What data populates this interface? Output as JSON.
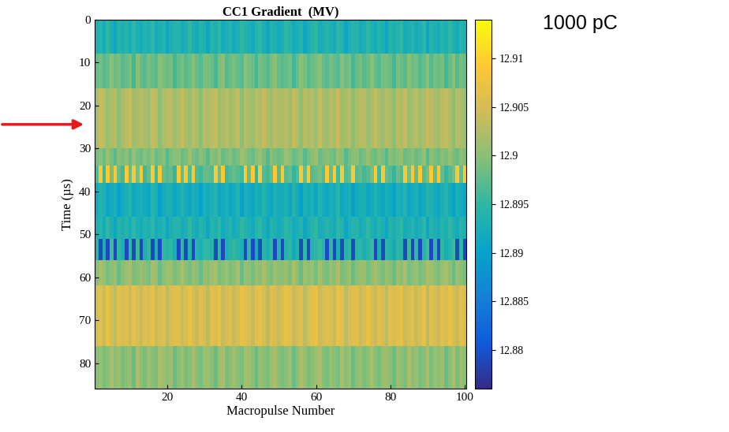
{
  "chart_data": {
    "type": "heatmap",
    "title": "CC1 Gradient  (MV)",
    "x_label": "Macropulse Number",
    "y_label": "Time (µs)",
    "annotations": [
      "1000 pC"
    ],
    "xlim": [
      0.5,
      100.5
    ],
    "xticks": [
      20,
      40,
      60,
      80,
      100
    ],
    "ylim": [
      86,
      0
    ],
    "yticks": [
      0,
      10,
      20,
      30,
      40,
      50,
      60,
      70,
      80
    ],
    "colorbar_range": [
      12.876,
      12.914
    ],
    "colorbar_ticks": [
      12.88,
      12.885,
      12.89,
      12.895,
      12.9,
      12.905,
      12.91
    ],
    "x_bins": [
      0.5,
      1.5,
      2.5,
      3.5,
      4.5,
      5.5,
      6.5,
      7.5,
      8.5,
      9.5,
      10.5,
      11.5,
      12.5,
      13.5,
      14.5,
      15.5,
      16.5,
      17.5,
      18.5,
      19.5,
      20.5,
      21.5,
      22.5,
      23.5,
      24.5,
      25.5,
      26.5,
      27.5,
      28.5,
      29.5,
      30.5,
      31.5,
      32.5,
      33.5,
      34.5,
      35.5,
      36.5,
      37.5,
      38.5,
      39.5,
      40.5,
      41.5,
      42.5,
      43.5,
      44.5,
      45.5,
      46.5,
      47.5,
      48.5,
      49.5,
      50.5,
      51.5,
      52.5,
      53.5,
      54.5,
      55.5,
      56.5,
      57.5,
      58.5,
      59.5,
      60.5,
      61.5,
      62.5,
      63.5,
      64.5,
      65.5,
      66.5,
      67.5,
      68.5,
      69.5,
      70.5,
      71.5,
      72.5,
      73.5,
      74.5,
      75.5,
      76.5,
      77.5,
      78.5,
      79.5,
      80.5,
      81.5,
      82.5,
      83.5,
      84.5,
      85.5,
      86.5,
      87.5,
      88.5,
      89.5,
      90.5,
      91.5,
      92.5,
      93.5,
      94.5,
      95.5,
      96.5,
      97.5,
      98.5,
      99.5,
      100.5
    ],
    "y_bins": [
      0,
      8,
      16,
      30,
      34,
      38,
      46,
      51,
      56,
      62,
      76,
      86
    ],
    "cells": [
      [
        12.893,
        12.894,
        12.892,
        12.895,
        12.893,
        12.891,
        12.894,
        12.893,
        12.894,
        12.892,
        12.895,
        12.893,
        12.892,
        12.894,
        12.893,
        12.895,
        12.892,
        12.893,
        12.894,
        12.891,
        12.893,
        12.894,
        12.894,
        12.892,
        12.893,
        12.895,
        12.893,
        12.892,
        12.894,
        12.893,
        12.891,
        12.894,
        12.893,
        12.895,
        12.892,
        12.893,
        12.894,
        12.892,
        12.893,
        12.895,
        12.894,
        12.893,
        12.892,
        12.894,
        12.895,
        12.893,
        12.891,
        12.894,
        12.893,
        12.892,
        12.893,
        12.895,
        12.894,
        12.892,
        12.893,
        12.894,
        12.891,
        12.893,
        12.894,
        12.895,
        12.892,
        12.893,
        12.894,
        12.893,
        12.892,
        12.895,
        12.894,
        12.891,
        12.893,
        12.894,
        12.894,
        12.892,
        12.893,
        12.895,
        12.893,
        12.892,
        12.894,
        12.893,
        12.891,
        12.894,
        12.893,
        12.894,
        12.895,
        12.892,
        12.893,
        12.894,
        12.892,
        12.893,
        12.895,
        12.891,
        12.894,
        12.893,
        12.892,
        12.894,
        12.893,
        12.895,
        12.893,
        12.892,
        12.894,
        12.893
      ],
      [
        12.898,
        12.899,
        12.897,
        12.898,
        12.9,
        12.898,
        12.899,
        12.897,
        12.898,
        12.899,
        12.896,
        12.9,
        12.898,
        12.897,
        12.899,
        12.898,
        12.897,
        12.9,
        12.899,
        12.898,
        12.899,
        12.896,
        12.898,
        12.899,
        12.897,
        12.898,
        12.9,
        12.898,
        12.897,
        12.899,
        12.899,
        12.898,
        12.896,
        12.899,
        12.9,
        12.897,
        12.898,
        12.899,
        12.898,
        12.897,
        12.9,
        12.899,
        12.898,
        12.896,
        12.899,
        12.898,
        12.897,
        12.899,
        12.9,
        12.898,
        12.897,
        12.898,
        12.899,
        12.896,
        12.898,
        12.9,
        12.899,
        12.897,
        12.898,
        12.899,
        12.9,
        12.898,
        12.897,
        12.899,
        12.898,
        12.897,
        12.9,
        12.898,
        12.899,
        12.896,
        12.898,
        12.899,
        12.897,
        12.898,
        12.9,
        12.898,
        12.897,
        12.899,
        12.899,
        12.898,
        12.896,
        12.899,
        12.898,
        12.897,
        12.9,
        12.898,
        12.899,
        12.897,
        12.898,
        12.9,
        12.897,
        12.899,
        12.898,
        12.899,
        12.896,
        12.898,
        12.9,
        12.897,
        12.899,
        12.898
      ],
      [
        12.902,
        12.904,
        12.903,
        12.901,
        12.902,
        12.903,
        12.9,
        12.902,
        12.903,
        12.904,
        12.901,
        12.902,
        12.903,
        12.902,
        12.901,
        12.904,
        12.903,
        12.9,
        12.902,
        12.903,
        12.903,
        12.901,
        12.902,
        12.904,
        12.902,
        12.901,
        12.903,
        12.902,
        12.9,
        12.903,
        12.902,
        12.903,
        12.904,
        12.901,
        12.902,
        12.903,
        12.901,
        12.902,
        12.904,
        12.9,
        12.903,
        12.902,
        12.901,
        12.903,
        12.902,
        12.904,
        12.902,
        12.901,
        12.903,
        12.902,
        12.902,
        12.903,
        12.901,
        12.904,
        12.902,
        12.9,
        12.903,
        12.902,
        12.903,
        12.901,
        12.904,
        12.902,
        12.901,
        12.903,
        12.902,
        12.904,
        12.901,
        12.902,
        12.903,
        12.9,
        12.902,
        12.903,
        12.903,
        12.901,
        12.902,
        12.904,
        12.902,
        12.901,
        12.903,
        12.902,
        12.9,
        12.903,
        12.902,
        12.904,
        12.901,
        12.902,
        12.903,
        12.901,
        12.902,
        12.904,
        12.903,
        12.902,
        12.901,
        12.903,
        12.904,
        12.902,
        12.9,
        12.903,
        12.902,
        12.901
      ],
      [
        12.899,
        12.9,
        12.898,
        12.901,
        12.899,
        12.897,
        12.9,
        12.899,
        12.9,
        12.898,
        12.901,
        12.899,
        12.898,
        12.9,
        12.899,
        12.901,
        12.898,
        12.899,
        12.9,
        12.897,
        12.899,
        12.9,
        12.9,
        12.898,
        12.899,
        12.901,
        12.899,
        12.898,
        12.9,
        12.899,
        12.897,
        12.9,
        12.899,
        12.901,
        12.898,
        12.899,
        12.9,
        12.898,
        12.899,
        12.901,
        12.9,
        12.899,
        12.898,
        12.9,
        12.901,
        12.899,
        12.897,
        12.9,
        12.899,
        12.898,
        12.899,
        12.901,
        12.9,
        12.898,
        12.899,
        12.9,
        12.897,
        12.899,
        12.9,
        12.901,
        12.898,
        12.899,
        12.9,
        12.899,
        12.898,
        12.901,
        12.9,
        12.897,
        12.899,
        12.9,
        12.9,
        12.898,
        12.899,
        12.901,
        12.899,
        12.898,
        12.9,
        12.899,
        12.897,
        12.9,
        12.899,
        12.9,
        12.901,
        12.898,
        12.899,
        12.9,
        12.898,
        12.899,
        12.901,
        12.897,
        12.9,
        12.899,
        12.898,
        12.9,
        12.899,
        12.901,
        12.899,
        12.898,
        12.9,
        12.899
      ],
      [
        12.897,
        12.909,
        12.896,
        12.909,
        12.899,
        12.909,
        12.898,
        12.896,
        12.909,
        12.898,
        12.909,
        12.899,
        12.909,
        12.896,
        12.898,
        12.909,
        12.896,
        12.909,
        12.898,
        12.897,
        12.898,
        12.895,
        12.909,
        12.898,
        12.909,
        12.897,
        12.909,
        12.897,
        12.896,
        12.898,
        12.898,
        12.897,
        12.909,
        12.898,
        12.909,
        12.896,
        12.897,
        12.898,
        12.897,
        12.896,
        12.909,
        12.898,
        12.909,
        12.895,
        12.909,
        12.897,
        12.896,
        12.898,
        12.909,
        12.897,
        12.909,
        12.897,
        12.898,
        12.895,
        12.897,
        12.909,
        12.898,
        12.909,
        12.897,
        12.898,
        12.899,
        12.897,
        12.909,
        12.898,
        12.909,
        12.896,
        12.909,
        12.897,
        12.898,
        12.909,
        12.897,
        12.898,
        12.896,
        12.897,
        12.899,
        12.909,
        12.896,
        12.909,
        12.898,
        12.897,
        12.895,
        12.898,
        12.897,
        12.909,
        12.899,
        12.909,
        12.898,
        12.909,
        12.897,
        12.899,
        12.909,
        12.898,
        12.909,
        12.898,
        12.895,
        12.897,
        12.899,
        12.909,
        12.898,
        12.909
      ],
      [
        12.892,
        12.894,
        12.893,
        12.891,
        12.892,
        12.893,
        12.89,
        12.892,
        12.893,
        12.894,
        12.891,
        12.892,
        12.893,
        12.892,
        12.891,
        12.894,
        12.893,
        12.89,
        12.892,
        12.893,
        12.893,
        12.891,
        12.892,
        12.894,
        12.892,
        12.891,
        12.893,
        12.892,
        12.89,
        12.893,
        12.892,
        12.893,
        12.894,
        12.891,
        12.892,
        12.893,
        12.891,
        12.892,
        12.894,
        12.89,
        12.893,
        12.892,
        12.891,
        12.893,
        12.892,
        12.894,
        12.892,
        12.891,
        12.893,
        12.892,
        12.892,
        12.893,
        12.891,
        12.894,
        12.892,
        12.89,
        12.893,
        12.892,
        12.893,
        12.891,
        12.894,
        12.892,
        12.891,
        12.893,
        12.892,
        12.894,
        12.891,
        12.892,
        12.893,
        12.89,
        12.892,
        12.893,
        12.893,
        12.891,
        12.892,
        12.894,
        12.892,
        12.891,
        12.893,
        12.892,
        12.89,
        12.893,
        12.892,
        12.894,
        12.891,
        12.892,
        12.893,
        12.891,
        12.892,
        12.894,
        12.893,
        12.892,
        12.891,
        12.893,
        12.894,
        12.892,
        12.89,
        12.893,
        12.892,
        12.891
      ],
      [
        12.893,
        12.894,
        12.892,
        12.895,
        12.893,
        12.891,
        12.894,
        12.893,
        12.894,
        12.892,
        12.895,
        12.893,
        12.892,
        12.894,
        12.893,
        12.895,
        12.892,
        12.893,
        12.894,
        12.891,
        12.893,
        12.894,
        12.894,
        12.892,
        12.893,
        12.895,
        12.893,
        12.892,
        12.894,
        12.893,
        12.891,
        12.894,
        12.893,
        12.895,
        12.892,
        12.893,
        12.894,
        12.892,
        12.893,
        12.895,
        12.894,
        12.893,
        12.892,
        12.894,
        12.895,
        12.893,
        12.891,
        12.894,
        12.893,
        12.892,
        12.893,
        12.895,
        12.894,
        12.892,
        12.893,
        12.894,
        12.891,
        12.893,
        12.894,
        12.895,
        12.892,
        12.893,
        12.894,
        12.893,
        12.892,
        12.895,
        12.894,
        12.891,
        12.893,
        12.894,
        12.894,
        12.892,
        12.893,
        12.895,
        12.893,
        12.892,
        12.894,
        12.893,
        12.891,
        12.894,
        12.893,
        12.894,
        12.895,
        12.892,
        12.893,
        12.894,
        12.892,
        12.893,
        12.895,
        12.891,
        12.894,
        12.893,
        12.892,
        12.894,
        12.893,
        12.895,
        12.893,
        12.892,
        12.894,
        12.893
      ],
      [
        12.894,
        12.879,
        12.893,
        12.879,
        12.896,
        12.879,
        12.895,
        12.893,
        12.879,
        12.895,
        12.879,
        12.896,
        12.879,
        12.893,
        12.895,
        12.879,
        12.893,
        12.879,
        12.895,
        12.894,
        12.895,
        12.892,
        12.879,
        12.895,
        12.879,
        12.894,
        12.879,
        12.894,
        12.893,
        12.895,
        12.895,
        12.894,
        12.879,
        12.895,
        12.879,
        12.893,
        12.894,
        12.895,
        12.894,
        12.893,
        12.879,
        12.895,
        12.879,
        12.892,
        12.879,
        12.894,
        12.893,
        12.895,
        12.879,
        12.894,
        12.879,
        12.894,
        12.895,
        12.892,
        12.894,
        12.879,
        12.895,
        12.879,
        12.894,
        12.895,
        12.896,
        12.894,
        12.879,
        12.895,
        12.879,
        12.893,
        12.879,
        12.894,
        12.895,
        12.879,
        12.894,
        12.895,
        12.893,
        12.894,
        12.896,
        12.879,
        12.893,
        12.879,
        12.895,
        12.894,
        12.892,
        12.895,
        12.894,
        12.879,
        12.896,
        12.879,
        12.895,
        12.879,
        12.894,
        12.896,
        12.879,
        12.895,
        12.879,
        12.895,
        12.892,
        12.894,
        12.896,
        12.879,
        12.895,
        12.879
      ],
      [
        12.9,
        12.902,
        12.901,
        12.899,
        12.9,
        12.901,
        12.898,
        12.9,
        12.901,
        12.902,
        12.899,
        12.9,
        12.901,
        12.9,
        12.899,
        12.902,
        12.901,
        12.898,
        12.9,
        12.901,
        12.901,
        12.899,
        12.9,
        12.902,
        12.9,
        12.899,
        12.901,
        12.9,
        12.898,
        12.901,
        12.9,
        12.901,
        12.902,
        12.899,
        12.9,
        12.901,
        12.899,
        12.9,
        12.902,
        12.898,
        12.901,
        12.9,
        12.899,
        12.901,
        12.9,
        12.902,
        12.9,
        12.899,
        12.901,
        12.9,
        12.9,
        12.901,
        12.899,
        12.902,
        12.9,
        12.898,
        12.901,
        12.9,
        12.901,
        12.899,
        12.902,
        12.9,
        12.899,
        12.901,
        12.9,
        12.902,
        12.899,
        12.9,
        12.901,
        12.898,
        12.9,
        12.901,
        12.901,
        12.899,
        12.9,
        12.902,
        12.9,
        12.899,
        12.901,
        12.9,
        12.898,
        12.901,
        12.9,
        12.902,
        12.899,
        12.9,
        12.901,
        12.899,
        12.9,
        12.902,
        12.901,
        12.9,
        12.899,
        12.901,
        12.902,
        12.9,
        12.898,
        12.901,
        12.9,
        12.899
      ],
      [
        12.905,
        12.906,
        12.904,
        12.907,
        12.905,
        12.903,
        12.906,
        12.905,
        12.906,
        12.904,
        12.907,
        12.905,
        12.904,
        12.906,
        12.905,
        12.907,
        12.904,
        12.905,
        12.906,
        12.903,
        12.905,
        12.906,
        12.906,
        12.904,
        12.905,
        12.907,
        12.905,
        12.904,
        12.906,
        12.905,
        12.903,
        12.906,
        12.905,
        12.907,
        12.904,
        12.905,
        12.906,
        12.904,
        12.905,
        12.907,
        12.906,
        12.905,
        12.904,
        12.906,
        12.907,
        12.905,
        12.903,
        12.906,
        12.905,
        12.904,
        12.905,
        12.907,
        12.906,
        12.904,
        12.905,
        12.906,
        12.903,
        12.905,
        12.906,
        12.907,
        12.904,
        12.905,
        12.906,
        12.905,
        12.904,
        12.907,
        12.906,
        12.903,
        12.905,
        12.906,
        12.906,
        12.904,
        12.905,
        12.907,
        12.905,
        12.904,
        12.906,
        12.905,
        12.903,
        12.906,
        12.905,
        12.906,
        12.907,
        12.904,
        12.905,
        12.906,
        12.904,
        12.905,
        12.907,
        12.903,
        12.906,
        12.905,
        12.904,
        12.906,
        12.905,
        12.907,
        12.905,
        12.904,
        12.906,
        12.905
      ],
      [
        12.9,
        12.901,
        12.899,
        12.9,
        12.902,
        12.9,
        12.901,
        12.899,
        12.9,
        12.901,
        12.898,
        12.902,
        12.9,
        12.899,
        12.901,
        12.9,
        12.899,
        12.902,
        12.901,
        12.9,
        12.901,
        12.898,
        12.9,
        12.901,
        12.899,
        12.9,
        12.902,
        12.9,
        12.899,
        12.901,
        12.901,
        12.9,
        12.898,
        12.901,
        12.902,
        12.899,
        12.9,
        12.901,
        12.9,
        12.899,
        12.902,
        12.901,
        12.9,
        12.898,
        12.901,
        12.9,
        12.899,
        12.901,
        12.902,
        12.9,
        12.899,
        12.9,
        12.901,
        12.898,
        12.9,
        12.902,
        12.901,
        12.899,
        12.9,
        12.901,
        12.902,
        12.9,
        12.899,
        12.901,
        12.9,
        12.899,
        12.902,
        12.9,
        12.901,
        12.898,
        12.9,
        12.901,
        12.899,
        12.9,
        12.902,
        12.9,
        12.899,
        12.901,
        12.901,
        12.9,
        12.898,
        12.901,
        12.9,
        12.899,
        12.902,
        12.9,
        12.901,
        12.899,
        12.9,
        12.902,
        12.899,
        12.901,
        12.9,
        12.901,
        12.898,
        12.9,
        12.902,
        12.899,
        12.901,
        12.9
      ]
    ]
  }
}
